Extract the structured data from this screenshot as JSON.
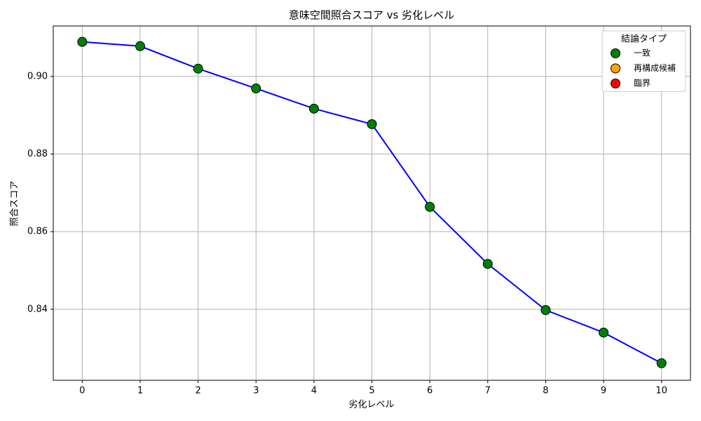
{
  "chart_data": {
    "type": "line",
    "title": "意味空間照合スコア vs 劣化レベル",
    "x_label": "劣化レベル",
    "y_label": "照合スコア",
    "x": [
      0,
      1,
      2,
      3,
      4,
      5,
      6,
      7,
      8,
      9,
      10
    ],
    "series": [
      {
        "color": "#0000ff",
        "marker_color": "#008000",
        "values": [
          0.9089,
          0.9078,
          0.902,
          0.8969,
          0.8917,
          0.8877,
          0.8664,
          0.8517,
          0.8398,
          0.834,
          0.8261
        ]
      }
    ],
    "xlim": [
      -0.5,
      10.5
    ],
    "ylim": [
      0.8217,
      0.913
    ],
    "xticks": [
      0,
      1,
      2,
      3,
      4,
      5,
      6,
      7,
      8,
      9,
      10
    ],
    "yticks": [
      {
        "value": 0.84,
        "label": "0.84"
      },
      {
        "value": 0.86,
        "label": "0.86"
      },
      {
        "value": 0.88,
        "label": "0.88"
      },
      {
        "value": 0.9,
        "label": "0.90"
      }
    ],
    "grid": true,
    "legend": {
      "title": "結論タイプ",
      "position": "upper right",
      "entries": [
        {
          "name": "一致",
          "color": "#008000"
        },
        {
          "name": "再構成候補",
          "color": "#ffa500"
        },
        {
          "name": "臨界",
          "color": "#ff0000"
        }
      ]
    }
  }
}
